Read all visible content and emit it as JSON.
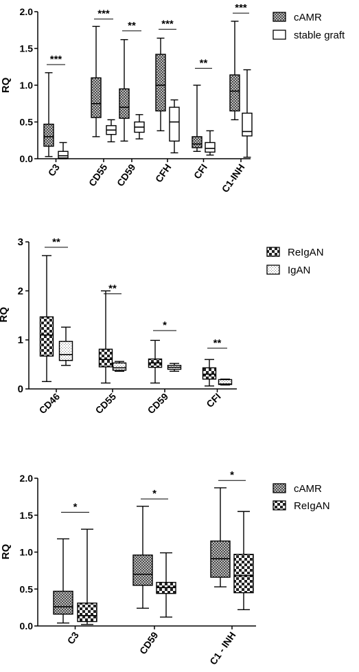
{
  "chart_data": [
    {
      "type": "box",
      "ylabel": "RQ",
      "ylim": [
        0,
        2.0
      ],
      "yticks": [
        "0.0",
        "0.5",
        "1.0",
        "1.5",
        "2.0"
      ],
      "categories": [
        "C3",
        "CD55",
        "CD59",
        "CFH",
        "CFI",
        "C1-INH"
      ],
      "legend_position": "top-right",
      "series": [
        {
          "name": "cAMR",
          "pattern": "checker",
          "boxes": [
            {
              "min": 0.03,
              "q1": 0.17,
              "median": 0.3,
              "q3": 0.47,
              "max": 1.17
            },
            {
              "min": 0.3,
              "q1": 0.56,
              "median": 0.75,
              "q3": 1.1,
              "max": 1.8
            },
            {
              "min": 0.24,
              "q1": 0.55,
              "median": 0.7,
              "q3": 0.95,
              "max": 1.62
            },
            {
              "min": 0.38,
              "q1": 0.65,
              "median": 1.0,
              "q3": 1.42,
              "max": 1.64
            },
            {
              "min": 0.1,
              "q1": 0.15,
              "median": 0.2,
              "q3": 0.3,
              "max": 1.0
            },
            {
              "min": 0.53,
              "q1": 0.65,
              "median": 0.92,
              "q3": 1.14,
              "max": 1.87
            }
          ]
        },
        {
          "name": "stable graft",
          "pattern": "white",
          "boxes": [
            {
              "min": 0.0,
              "q1": 0.01,
              "median": 0.04,
              "q3": 0.1,
              "max": 0.22
            },
            {
              "min": 0.23,
              "q1": 0.33,
              "median": 0.39,
              "q3": 0.45,
              "max": 0.53
            },
            {
              "min": 0.27,
              "q1": 0.36,
              "median": 0.43,
              "q3": 0.5,
              "max": 0.6
            },
            {
              "min": 0.08,
              "q1": 0.24,
              "median": 0.5,
              "q3": 0.7,
              "max": 0.8
            },
            {
              "min": 0.05,
              "q1": 0.09,
              "median": 0.14,
              "q3": 0.22,
              "max": 0.38
            },
            {
              "min": 0.02,
              "q1": 0.31,
              "median": 0.37,
              "q3": 0.62,
              "max": 1.21
            }
          ]
        }
      ],
      "significance": [
        "***",
        "***",
        "**",
        "***",
        "**",
        "***"
      ],
      "significance_y": [
        1.28,
        1.9,
        1.74,
        1.76,
        1.23,
        1.98
      ]
    },
    {
      "type": "box",
      "ylabel": "RQ",
      "ylim": [
        0,
        3
      ],
      "yticks": [
        "0",
        "1",
        "2",
        "3"
      ],
      "categories": [
        "CD46",
        "CD55",
        "CD59",
        "CFI"
      ],
      "legend_position": "top-right",
      "series": [
        {
          "name": "ReIgAN",
          "pattern": "bigchecker",
          "boxes": [
            {
              "min": 0.15,
              "q1": 0.67,
              "median": 1.1,
              "q3": 1.47,
              "max": 2.72
            },
            {
              "min": 0.12,
              "q1": 0.45,
              "median": 0.6,
              "q3": 0.81,
              "max": 2.0
            },
            {
              "min": 0.12,
              "q1": 0.44,
              "median": 0.53,
              "q3": 0.61,
              "max": 0.99
            },
            {
              "min": 0.06,
              "q1": 0.2,
              "median": 0.3,
              "q3": 0.43,
              "max": 0.6
            }
          ]
        },
        {
          "name": "IgAN",
          "pattern": "dots",
          "boxes": [
            {
              "min": 0.48,
              "q1": 0.58,
              "median": 0.7,
              "q3": 0.97,
              "max": 1.26
            },
            {
              "min": 0.36,
              "q1": 0.38,
              "median": 0.43,
              "q3": 0.53,
              "max": 0.56
            },
            {
              "min": 0.36,
              "q1": 0.4,
              "median": 0.44,
              "q3": 0.48,
              "max": 0.52
            },
            {
              "min": 0.08,
              "q1": 0.09,
              "median": 0.1,
              "q3": 0.19,
              "max": 0.2
            }
          ]
        }
      ],
      "significance": [
        "**",
        "**",
        "*",
        "**"
      ],
      "significance_y": [
        2.89,
        1.94,
        1.19,
        0.83
      ]
    },
    {
      "type": "box",
      "ylabel": "RQ",
      "ylim": [
        0,
        2.0
      ],
      "yticks": [
        "0.0",
        "0.5",
        "1.0",
        "1.5",
        "2.0"
      ],
      "categories": [
        "C3",
        "CD59",
        "C1 - INH"
      ],
      "legend_position": "top-right",
      "series": [
        {
          "name": "cAMR",
          "pattern": "checker",
          "boxes": [
            {
              "min": 0.04,
              "q1": 0.16,
              "median": 0.26,
              "q3": 0.47,
              "max": 1.18
            },
            {
              "min": 0.24,
              "q1": 0.55,
              "median": 0.7,
              "q3": 0.96,
              "max": 1.62
            },
            {
              "min": 0.53,
              "q1": 0.66,
              "median": 0.91,
              "q3": 1.15,
              "max": 1.87
            }
          ]
        },
        {
          "name": "ReIgAN",
          "pattern": "bigchecker",
          "boxes": [
            {
              "min": 0.02,
              "q1": 0.06,
              "median": 0.14,
              "q3": 0.31,
              "max": 1.31
            },
            {
              "min": 0.12,
              "q1": 0.44,
              "median": 0.52,
              "q3": 0.59,
              "max": 0.99
            },
            {
              "min": 0.22,
              "q1": 0.45,
              "median": 0.68,
              "q3": 0.97,
              "max": 1.55
            }
          ]
        }
      ],
      "significance": [
        "*",
        "*",
        "*"
      ],
      "significance_y": [
        1.54,
        1.72,
        1.97
      ]
    }
  ]
}
